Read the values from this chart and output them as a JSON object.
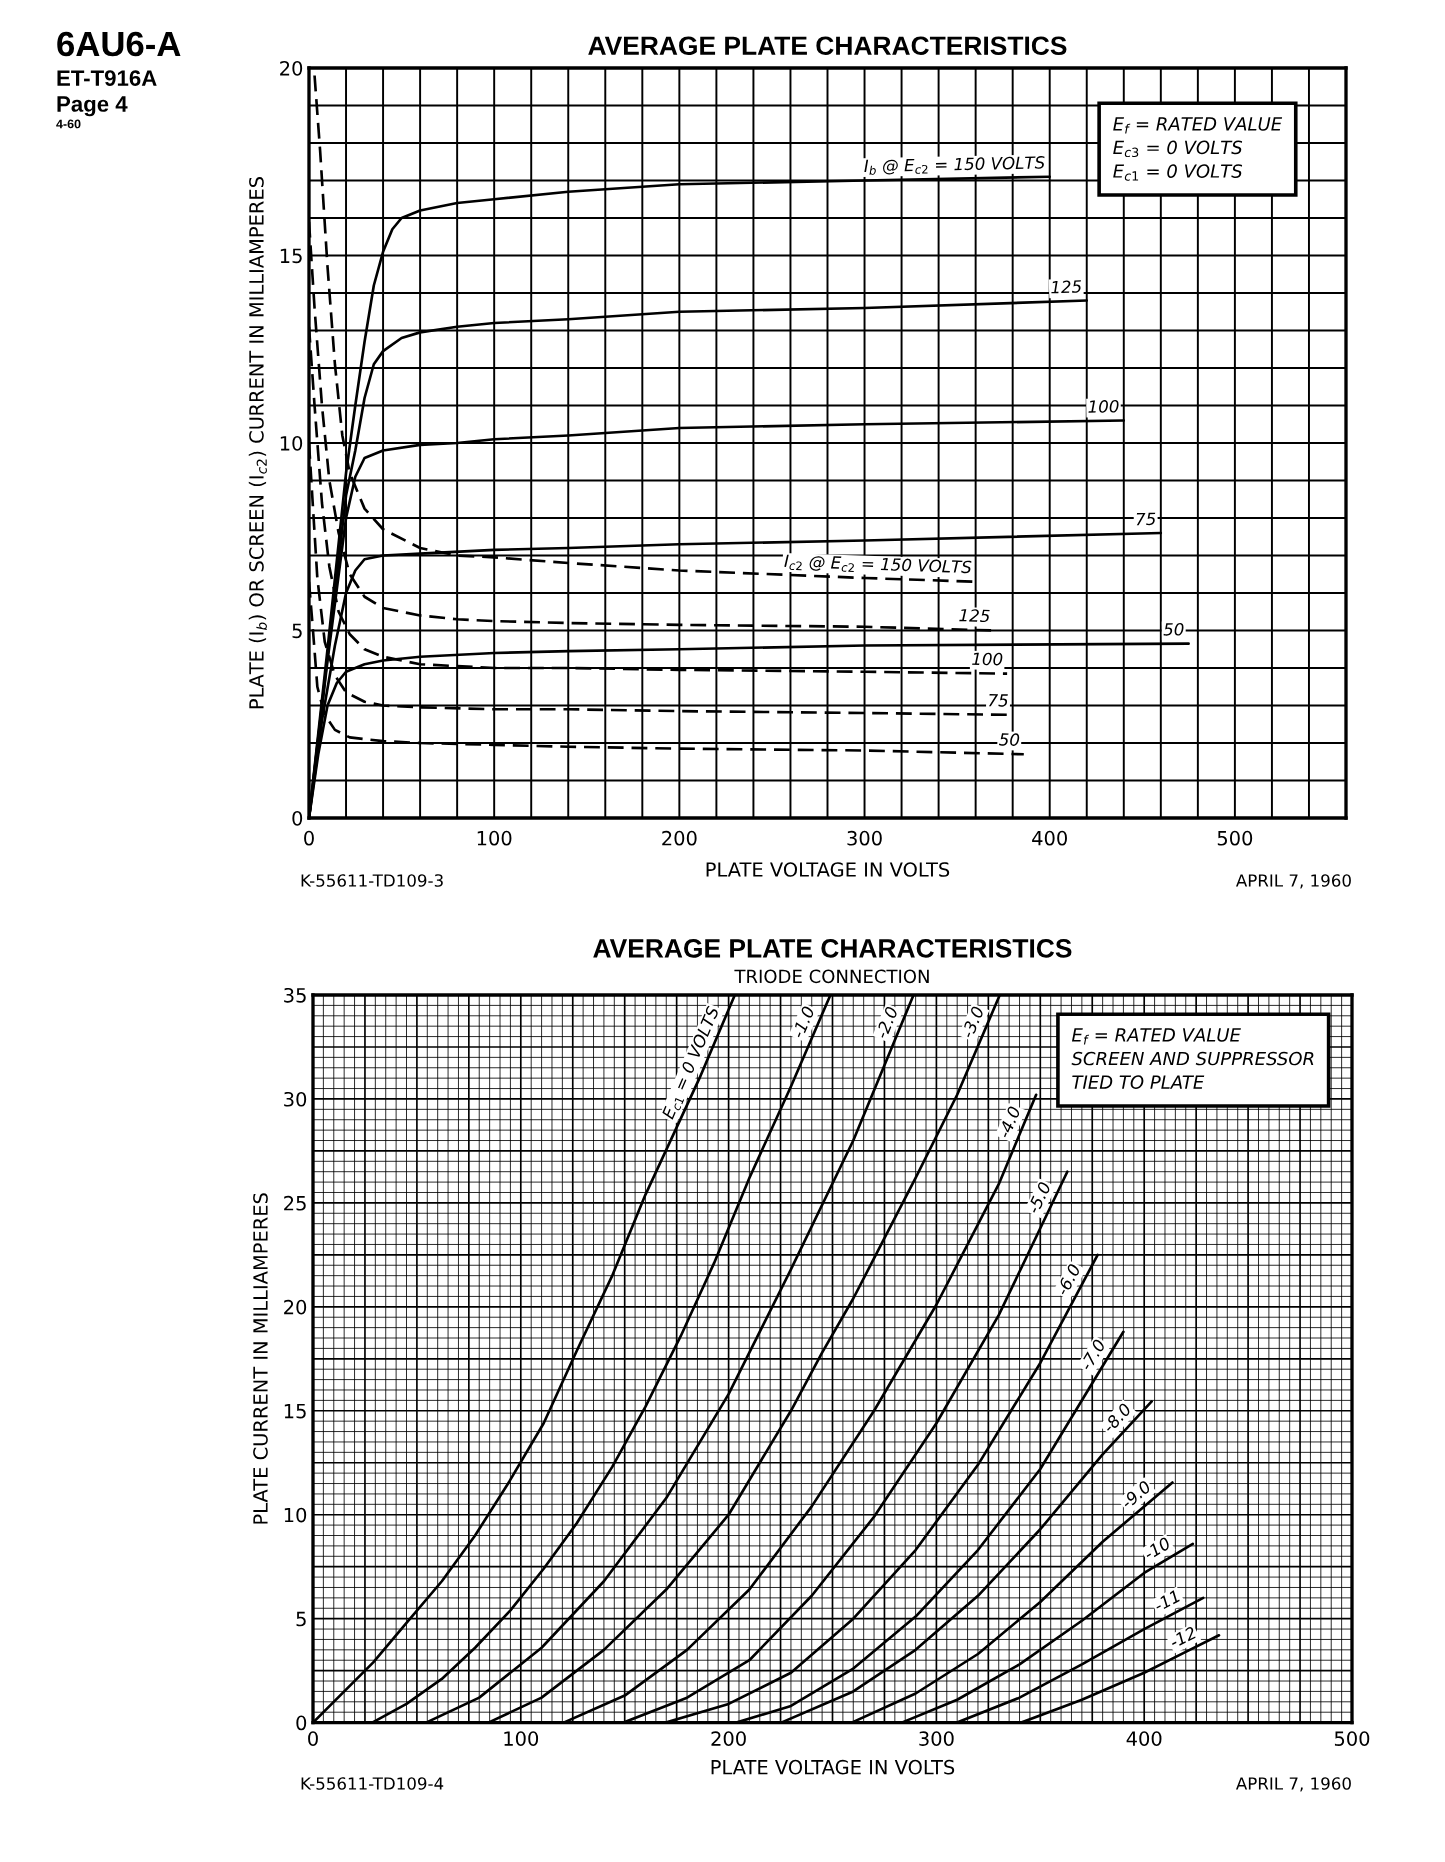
{
  "chart_data": [
    {
      "type": "line",
      "title": "AVERAGE PLATE CHARACTERISTICS",
      "xlabel": "PLATE VOLTAGE IN VOLTS",
      "ylabel": "PLATE (I$_{b}$) OR SCREEN (I$_{c2}$) CURRENT IN MILLIAMPERES",
      "xlim": [
        0,
        560
      ],
      "ylim": [
        0,
        20
      ],
      "xticks": [
        0,
        {
          "value": 20,
          "label": null
        },
        {
          "value": 40,
          "label": null
        },
        {
          "value": 60,
          "label": null
        },
        {
          "value": 80,
          "label": null
        },
        100,
        {
          "value": 120,
          "label": null
        },
        {
          "value": 140,
          "label": null
        },
        {
          "value": 160,
          "label": null
        },
        {
          "value": 180,
          "label": null
        },
        200,
        {
          "value": 220,
          "label": null
        },
        {
          "value": 240,
          "label": null
        },
        {
          "value": 260,
          "label": null
        },
        {
          "value": 280,
          "label": null
        },
        300,
        {
          "value": 320,
          "label": null
        },
        {
          "value": 340,
          "label": null
        },
        {
          "value": 360,
          "label": null
        },
        {
          "value": 380,
          "label": null
        },
        400,
        {
          "value": 420,
          "label": null
        },
        {
          "value": 440,
          "label": null
        },
        {
          "value": 460,
          "label": null
        },
        {
          "value": 480,
          "label": null
        },
        500,
        {
          "value": 520,
          "label": null
        },
        {
          "value": 540,
          "label": null
        }
      ],
      "yticks": [
        0,
        {
          "value": 1,
          "label": null
        },
        {
          "value": 2,
          "label": null
        },
        {
          "value": 3,
          "label": null
        },
        {
          "value": 4,
          "label": null
        },
        5,
        {
          "value": 6,
          "label": null
        },
        {
          "value": 7,
          "label": null
        },
        {
          "value": 8,
          "label": null
        },
        {
          "value": 9,
          "label": null
        },
        10,
        {
          "value": 11,
          "label": null
        },
        {
          "value": 12,
          "label": null
        },
        {
          "value": 13,
          "label": null
        },
        {
          "value": 14,
          "label": null
        },
        15,
        {
          "value": 16,
          "label": null
        },
        {
          "value": 17,
          "label": null
        },
        {
          "value": 18,
          "label": null
        },
        {
          "value": 19,
          "label": null
        },
        20
      ],
      "grid": true,
      "annotations": [
        "6AU6-A",
        "ET-T916A",
        "Page 4",
        "4-60",
        "E$_{f}$ = RATED VALUE\nE$_{c3}$ = 0 VOLTS\nE$_{c1}$ = 0 VOLTS",
        "K-55611-TD109-3",
        "APRIL 7, 1960"
      ],
      "series": [
        {
          "name": "I$_{b}$ @ E$_{c2}$ = 150 VOLTS",
          "color": "#000000",
          "line_style": "solid",
          "x": [
            0,
            10,
            20,
            25,
            30,
            35,
            40,
            45,
            50,
            60,
            70,
            80,
            100,
            140,
            200,
            300,
            400
          ],
          "values": [
            0,
            4.5,
            9.2,
            11.0,
            12.7,
            14.2,
            15.1,
            15.7,
            16.0,
            16.2,
            16.3,
            16.4,
            16.5,
            16.7,
            16.9,
            17.0,
            17.1
          ]
        },
        {
          "name": "125",
          "color": "#000000",
          "line_style": "solid",
          "x": [
            0,
            10,
            20,
            25,
            30,
            35,
            40,
            50,
            60,
            80,
            100,
            140,
            200,
            300,
            420
          ],
          "values": [
            0,
            4.3,
            8.6,
            9.8,
            11.2,
            12.1,
            12.45,
            12.8,
            12.95,
            13.1,
            13.2,
            13.3,
            13.5,
            13.6,
            13.8
          ]
        },
        {
          "name": "100",
          "color": "#000000",
          "line_style": "solid",
          "x": [
            0,
            10,
            20,
            25,
            30,
            40,
            60,
            80,
            100,
            140,
            200,
            300,
            440
          ],
          "values": [
            0,
            4.2,
            8.0,
            9.1,
            9.6,
            9.8,
            9.95,
            10.0,
            10.1,
            10.2,
            10.4,
            10.5,
            10.6
          ]
        },
        {
          "name": "75",
          "color": "#000000",
          "line_style": "solid",
          "x": [
            0,
            7,
            14,
            20,
            25,
            30,
            40,
            60,
            100,
            140,
            200,
            300,
            460
          ],
          "values": [
            0,
            2.6,
            4.6,
            6.0,
            6.6,
            6.9,
            7.0,
            7.05,
            7.15,
            7.2,
            7.3,
            7.4,
            7.6
          ]
        },
        {
          "name": "50",
          "color": "#000000",
          "line_style": "solid",
          "x": [
            0,
            5,
            10,
            15,
            20,
            30,
            40,
            60,
            100,
            140,
            200,
            300,
            475
          ],
          "values": [
            0,
            1.7,
            3.0,
            3.6,
            3.9,
            4.1,
            4.2,
            4.3,
            4.4,
            4.45,
            4.5,
            4.6,
            4.65
          ]
        },
        {
          "name": "I$_{c2}$ @ E$_{c2}$ = 150 VOLTS",
          "color": "#000000",
          "line_style": "dashed",
          "x": [
            3,
            6,
            10,
            14,
            18,
            22,
            30,
            40,
            60,
            80,
            100,
            140,
            200,
            300,
            360
          ],
          "values": [
            19.8,
            17.8,
            14.7,
            12.1,
            10.2,
            9.2,
            8.25,
            7.7,
            7.2,
            7.0,
            6.95,
            6.8,
            6.6,
            6.4,
            6.3
          ]
        },
        {
          "name": "125",
          "color": "#000000",
          "line_style": "dashed",
          "x": [
            0,
            3,
            7,
            11,
            16,
            22,
            30,
            40,
            60,
            80,
            100,
            140,
            200,
            300,
            370
          ],
          "values": [
            15.9,
            13.6,
            11.0,
            9.0,
            7.6,
            6.5,
            5.9,
            5.6,
            5.4,
            5.3,
            5.25,
            5.2,
            5.15,
            5.1,
            5.0
          ]
        },
        {
          "name": "100",
          "color": "#000000",
          "line_style": "dashed",
          "x": [
            0,
            3,
            7,
            11,
            16,
            22,
            30,
            40,
            60,
            80,
            100,
            140,
            200,
            300,
            377
          ],
          "values": [
            13.1,
            11.0,
            8.4,
            6.7,
            5.5,
            4.9,
            4.5,
            4.3,
            4.1,
            4.05,
            4.0,
            4.0,
            3.95,
            3.9,
            3.85
          ]
        },
        {
          "name": "75",
          "color": "#000000",
          "line_style": "dashed",
          "x": [
            0,
            2,
            4.5,
            8.5,
            14,
            20,
            30,
            40,
            60,
            100,
            140,
            200,
            300,
            380
          ],
          "values": [
            10.0,
            8.4,
            6.4,
            4.7,
            3.8,
            3.35,
            3.1,
            3.0,
            2.95,
            2.9,
            2.9,
            2.85,
            2.8,
            2.75
          ]
        },
        {
          "name": "50",
          "color": "#000000",
          "line_style": "dashed",
          "x": [
            0,
            2,
            4.5,
            8.5,
            14,
            22,
            40,
            60,
            100,
            140,
            200,
            300,
            386
          ],
          "values": [
            6.3,
            5.1,
            3.5,
            2.75,
            2.35,
            2.15,
            2.05,
            2.0,
            1.95,
            1.9,
            1.85,
            1.8,
            1.7
          ]
        }
      ]
    },
    {
      "type": "line",
      "title": "AVERAGE PLATE CHARACTERISTICS",
      "subtitle": "TRIODE CONNECTION",
      "xlabel": "PLATE VOLTAGE IN VOLTS",
      "ylabel": "PLATE CURRENT IN MILLIAMPERES",
      "xlim": [
        0,
        500
      ],
      "ylim": [
        0,
        35
      ],
      "xticks": [
        0,
        {
          "value": 5,
          "label": null
        },
        {
          "value": 10,
          "label": null
        },
        {
          "value": 15,
          "label": null
        },
        {
          "value": 20,
          "label": null
        },
        {
          "value": 25,
          "label": null
        },
        {
          "value": 30,
          "label": null
        },
        {
          "value": 35,
          "label": null
        },
        {
          "value": 40,
          "label": null
        },
        {
          "value": 45,
          "label": null
        },
        {
          "value": 50,
          "label": null
        },
        {
          "value": 55,
          "label": null
        },
        {
          "value": 60,
          "label": null
        },
        {
          "value": 65,
          "label": null
        },
        {
          "value": 70,
          "label": null
        },
        {
          "value": 75,
          "label": null
        },
        {
          "value": 80,
          "label": null
        },
        {
          "value": 85,
          "label": null
        },
        {
          "value": 90,
          "label": null
        },
        {
          "value": 95,
          "label": null
        },
        100,
        {
          "value": 105,
          "label": null
        },
        {
          "value": 110,
          "label": null
        },
        {
          "value": 115,
          "label": null
        },
        {
          "value": 120,
          "label": null
        },
        {
          "value": 125,
          "label": null
        },
        {
          "value": 130,
          "label": null
        },
        {
          "value": 135,
          "label": null
        },
        {
          "value": 140,
          "label": null
        },
        {
          "value": 145,
          "label": null
        },
        {
          "value": 150,
          "label": null
        },
        {
          "value": 155,
          "label": null
        },
        {
          "value": 160,
          "label": null
        },
        {
          "value": 165,
          "label": null
        },
        {
          "value": 170,
          "label": null
        },
        {
          "value": 175,
          "label": null
        },
        {
          "value": 180,
          "label": null
        },
        {
          "value": 185,
          "label": null
        },
        {
          "value": 190,
          "label": null
        },
        {
          "value": 195,
          "label": null
        },
        200,
        {
          "value": 205,
          "label": null
        },
        {
          "value": 210,
          "label": null
        },
        {
          "value": 215,
          "label": null
        },
        {
          "value": 220,
          "label": null
        },
        {
          "value": 225,
          "label": null
        },
        {
          "value": 230,
          "label": null
        },
        {
          "value": 235,
          "label": null
        },
        {
          "value": 240,
          "label": null
        },
        {
          "value": 245,
          "label": null
        },
        {
          "value": 250,
          "label": null
        },
        {
          "value": 255,
          "label": null
        },
        {
          "value": 260,
          "label": null
        },
        {
          "value": 265,
          "label": null
        },
        {
          "value": 270,
          "label": null
        },
        {
          "value": 275,
          "label": null
        },
        {
          "value": 280,
          "label": null
        },
        {
          "value": 285,
          "label": null
        },
        {
          "value": 290,
          "label": null
        },
        {
          "value": 295,
          "label": null
        },
        300,
        {
          "value": 305,
          "label": null
        },
        {
          "value": 310,
          "label": null
        },
        {
          "value": 315,
          "label": null
        },
        {
          "value": 320,
          "label": null
        },
        {
          "value": 325,
          "label": null
        },
        {
          "value": 330,
          "label": null
        },
        {
          "value": 335,
          "label": null
        },
        {
          "value": 340,
          "label": null
        },
        {
          "value": 345,
          "label": null
        },
        {
          "value": 350,
          "label": null
        },
        {
          "value": 355,
          "label": null
        },
        {
          "value": 360,
          "label": null
        },
        {
          "value": 365,
          "label": null
        },
        {
          "value": 370,
          "label": null
        },
        {
          "value": 375,
          "label": null
        },
        {
          "value": 380,
          "label": null
        },
        {
          "value": 385,
          "label": null
        },
        {
          "value": 390,
          "label": null
        },
        {
          "value": 395,
          "label": null
        },
        400,
        {
          "value": 405,
          "label": null
        },
        {
          "value": 410,
          "label": null
        },
        {
          "value": 415,
          "label": null
        },
        {
          "value": 420,
          "label": null
        },
        {
          "value": 425,
          "label": null
        },
        {
          "value": 430,
          "label": null
        },
        {
          "value": 435,
          "label": null
        },
        {
          "value": 440,
          "label": null
        },
        {
          "value": 445,
          "label": null
        },
        {
          "value": 450,
          "label": null
        },
        {
          "value": 455,
          "label": null
        },
        {
          "value": 460,
          "label": null
        },
        {
          "value": 465,
          "label": null
        },
        {
          "value": 470,
          "label": null
        },
        {
          "value": 475,
          "label": null
        },
        {
          "value": 480,
          "label": null
        },
        {
          "value": 485,
          "label": null
        },
        {
          "value": 490,
          "label": null
        },
        {
          "value": 495,
          "label": null
        },
        500
      ],
      "yticks": [
        0,
        {
          "value": 0.5,
          "label": null
        },
        {
          "value": 1,
          "label": null
        },
        {
          "value": 1.5,
          "label": null
        },
        {
          "value": 2,
          "label": null
        },
        {
          "value": 2.5,
          "label": null
        },
        {
          "value": 3,
          "label": null
        },
        {
          "value": 3.5,
          "label": null
        },
        {
          "value": 4,
          "label": null
        },
        {
          "value": 4.5,
          "label": null
        },
        5,
        {
          "value": 5.5,
          "label": null
        },
        {
          "value": 6,
          "label": null
        },
        {
          "value": 6.5,
          "label": null
        },
        {
          "value": 7,
          "label": null
        },
        {
          "value": 7.5,
          "label": null
        },
        {
          "value": 8,
          "label": null
        },
        {
          "value": 8.5,
          "label": null
        },
        {
          "value": 9,
          "label": null
        },
        {
          "value": 9.5,
          "label": null
        },
        10,
        {
          "value": 10.5,
          "label": null
        },
        {
          "value": 11,
          "label": null
        },
        {
          "value": 11.5,
          "label": null
        },
        {
          "value": 12,
          "label": null
        },
        {
          "value": 12.5,
          "label": null
        },
        {
          "value": 13,
          "label": null
        },
        {
          "value": 13.5,
          "label": null
        },
        {
          "value": 14,
          "label": null
        },
        {
          "value": 14.5,
          "label": null
        },
        15,
        {
          "value": 15.5,
          "label": null
        },
        {
          "value": 16,
          "label": null
        },
        {
          "value": 16.5,
          "label": null
        },
        {
          "value": 17,
          "label": null
        },
        {
          "value": 17.5,
          "label": null
        },
        {
          "value": 18,
          "label": null
        },
        {
          "value": 18.5,
          "label": null
        },
        {
          "value": 19,
          "label": null
        },
        {
          "value": 19.5,
          "label": null
        },
        20,
        {
          "value": 20.5,
          "label": null
        },
        {
          "value": 21,
          "label": null
        },
        {
          "value": 21.5,
          "label": null
        },
        {
          "value": 22,
          "label": null
        },
        {
          "value": 22.5,
          "label": null
        },
        {
          "value": 23,
          "label": null
        },
        {
          "value": 23.5,
          "label": null
        },
        {
          "value": 24,
          "label": null
        },
        {
          "value": 24.5,
          "label": null
        },
        25,
        {
          "value": 25.5,
          "label": null
        },
        {
          "value": 26,
          "label": null
        },
        {
          "value": 26.5,
          "label": null
        },
        {
          "value": 27,
          "label": null
        },
        {
          "value": 27.5,
          "label": null
        },
        {
          "value": 28,
          "label": null
        },
        {
          "value": 28.5,
          "label": null
        },
        {
          "value": 29,
          "label": null
        },
        {
          "value": 29.5,
          "label": null
        },
        30,
        {
          "value": 30.5,
          "label": null
        },
        {
          "value": 31,
          "label": null
        },
        {
          "value": 31.5,
          "label": null
        },
        {
          "value": 32,
          "label": null
        },
        {
          "value": 32.5,
          "label": null
        },
        {
          "value": 33,
          "label": null
        },
        {
          "value": 33.5,
          "label": null
        },
        {
          "value": 34,
          "label": null
        },
        {
          "value": 34.5,
          "label": null
        },
        35
      ],
      "grid": true,
      "annotations": [
        "E$_{f}$ = RATED VALUE\nSCREEN AND SUPPRESSOR\nTIED TO PLATE",
        "K-55611-TD109-4",
        "APRIL 7, 1960"
      ],
      "series": [
        {
          "name": "E$_{c1}$ = 0 VOLTS",
          "color": "#000000",
          "line_style": "solid",
          "x": [
            0,
            29,
            45,
            62,
            78,
            94.5,
            111,
            127,
            144,
            160,
            186,
            203
          ],
          "values": [
            0,
            2.9,
            4.8,
            6.8,
            9.0,
            11.6,
            14.4,
            17.9,
            21.5,
            25.4,
            31,
            35
          ]
        },
        {
          "name": "-1.0",
          "color": "#000000",
          "line_style": "solid",
          "x": [
            28.5,
            45,
            62,
            78,
            95,
            111,
            127,
            144,
            160,
            177,
            193,
            210,
            230,
            249
          ],
          "values": [
            0,
            0.9,
            2.1,
            3.6,
            5.4,
            7.4,
            9.6,
            12.3,
            15.2,
            18.6,
            22.1,
            26.2,
            30.6,
            35
          ]
        },
        {
          "name": "-2.0",
          "color": "#000000",
          "line_style": "solid",
          "x": [
            54.4,
            80,
            110,
            140,
            170,
            200,
            230,
            260,
            289
          ],
          "values": [
            0,
            1.2,
            3.6,
            6.8,
            10.8,
            15.8,
            21.8,
            28.0,
            35
          ]
        },
        {
          "name": "-3.0",
          "color": "#000000",
          "line_style": "solid",
          "x": [
            84.4,
            110,
            140,
            170,
            200,
            215,
            230,
            245,
            260,
            275,
            290,
            310,
            330.5
          ],
          "values": [
            0,
            1.2,
            3.5,
            6.4,
            10.0,
            12.5,
            15.0,
            17.8,
            20.4,
            23.3,
            26.2,
            30.2,
            35
          ]
        },
        {
          "name": "-4.0",
          "color": "#000000",
          "line_style": "solid",
          "x": [
            120.6,
            150,
            180,
            210,
            240,
            270,
            300,
            330,
            348
          ],
          "values": [
            0,
            1.3,
            3.5,
            6.4,
            10.4,
            15.0,
            20.1,
            25.9,
            30.2
          ]
        },
        {
          "name": "-5.0",
          "color": "#000000",
          "line_style": "solid",
          "x": [
            149.4,
            180,
            210,
            240,
            270,
            300,
            330,
            363
          ],
          "values": [
            0,
            1.2,
            3.0,
            6.1,
            9.9,
            14.4,
            19.6,
            26.5
          ]
        },
        {
          "name": "-6.0",
          "color": "#000000",
          "line_style": "solid",
          "x": [
            169.7,
            200,
            230,
            260,
            290,
            320,
            350,
            377.6
          ],
          "values": [
            0,
            0.9,
            2.4,
            5.0,
            8.3,
            12.4,
            17.3,
            22.5
          ]
        },
        {
          "name": "-7.0",
          "color": "#000000",
          "line_style": "solid",
          "x": [
            203.7,
            230,
            260,
            290,
            320,
            350,
            390
          ],
          "values": [
            0,
            0.8,
            2.6,
            5.1,
            8.3,
            12.2,
            18.8
          ]
        },
        {
          "name": "-8.0",
          "color": "#000000",
          "line_style": "solid",
          "x": [
            225.3,
            260,
            290,
            320,
            350,
            380,
            403.6
          ],
          "values": [
            0,
            1.5,
            3.5,
            6.1,
            9.3,
            12.9,
            15.45
          ]
        },
        {
          "name": "-9.0",
          "color": "#000000",
          "line_style": "solid",
          "x": [
            259.2,
            290,
            320,
            350,
            380,
            413.6
          ],
          "values": [
            0,
            1.4,
            3.3,
            5.8,
            8.7,
            11.55
          ]
        },
        {
          "name": "-10",
          "color": "#000000",
          "line_style": "solid",
          "x": [
            283.3,
            310,
            340,
            370,
            400,
            423.4
          ],
          "values": [
            0,
            1.1,
            2.8,
            4.9,
            7.2,
            8.6
          ]
        },
        {
          "name": "-11",
          "color": "#000000",
          "line_style": "solid",
          "x": [
            309.9,
            340,
            370,
            400,
            428.4
          ],
          "values": [
            0,
            1.2,
            2.8,
            4.5,
            6.0
          ]
        },
        {
          "name": "-12",
          "color": "#000000",
          "line_style": "solid",
          "x": [
            340.8,
            370,
            400,
            420,
            436
          ],
          "values": [
            0,
            1.1,
            2.4,
            3.4,
            4.2
          ]
        }
      ]
    }
  ]
}
